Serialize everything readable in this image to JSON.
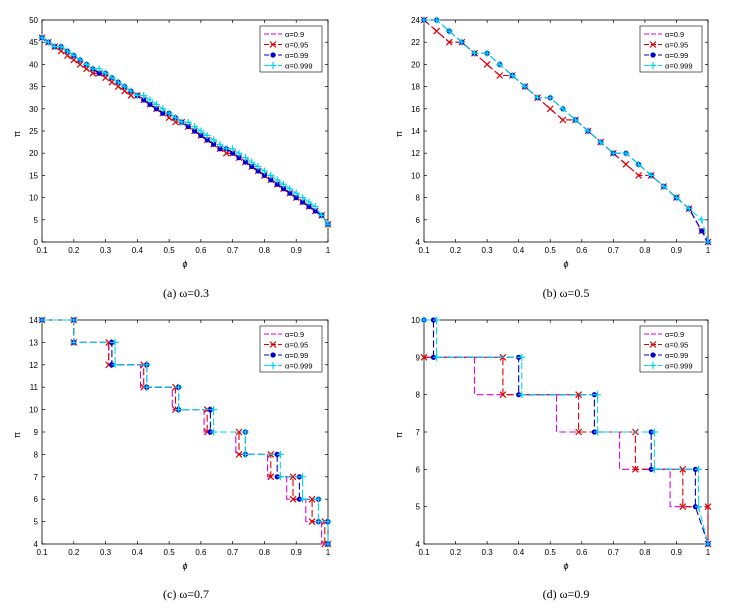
{
  "colors": {
    "series": [
      "#e000e0",
      "#e00000",
      "#0000d0",
      "#00d8f0"
    ],
    "axis": "#000000",
    "background": "#ffffff"
  },
  "chart_data": [
    {
      "type": "line",
      "caption": "(a) ω=0.3",
      "xlabel": "ϕ",
      "ylabel": "π",
      "xlim": [
        0.1,
        1
      ],
      "ylim": [
        0,
        50
      ],
      "xticks": [
        0.1,
        0.2,
        0.3,
        0.4,
        0.5,
        0.6,
        0.7,
        0.8,
        0.9,
        1
      ],
      "yticks": [
        0,
        5,
        10,
        15,
        20,
        25,
        30,
        35,
        40,
        45,
        50
      ],
      "legend_position": "top-right",
      "series": [
        {
          "name": "α=0.9",
          "x": [
            0.1,
            0.12,
            0.14,
            0.16,
            0.18,
            0.2,
            0.22,
            0.24,
            0.26,
            0.28,
            0.3,
            0.32,
            0.34,
            0.36,
            0.38,
            0.4,
            0.42,
            0.44,
            0.46,
            0.48,
            0.5,
            0.52,
            0.54,
            0.56,
            0.58,
            0.6,
            0.62,
            0.64,
            0.66,
            0.68,
            0.7,
            0.72,
            0.74,
            0.76,
            0.78,
            0.8,
            0.82,
            0.84,
            0.86,
            0.88,
            0.9,
            0.92,
            0.94,
            0.96,
            0.98,
            1.0
          ],
          "y": [
            46,
            45,
            44,
            43,
            42,
            41,
            40,
            39,
            38,
            38,
            37,
            36,
            35,
            34,
            33,
            33,
            32,
            31,
            30,
            29,
            28,
            27,
            27,
            26,
            25,
            24,
            23,
            22,
            21,
            20,
            20,
            19,
            18,
            17,
            16,
            15,
            14,
            13,
            12,
            11,
            10,
            9,
            8,
            7,
            6,
            4
          ]
        },
        {
          "name": "α=0.95",
          "x": [
            0.1,
            0.12,
            0.14,
            0.16,
            0.18,
            0.2,
            0.22,
            0.24,
            0.26,
            0.28,
            0.3,
            0.32,
            0.34,
            0.36,
            0.38,
            0.4,
            0.42,
            0.44,
            0.46,
            0.48,
            0.5,
            0.52,
            0.54,
            0.56,
            0.58,
            0.6,
            0.62,
            0.64,
            0.66,
            0.68,
            0.7,
            0.72,
            0.74,
            0.76,
            0.78,
            0.8,
            0.82,
            0.84,
            0.86,
            0.88,
            0.9,
            0.92,
            0.94,
            0.96,
            0.98,
            1.0
          ],
          "y": [
            46,
            45,
            44,
            43,
            42,
            41,
            40,
            39,
            38,
            38,
            37,
            36,
            35,
            34,
            33,
            33,
            32,
            31,
            30,
            29,
            28,
            27,
            27,
            26,
            25,
            24,
            23,
            22,
            21,
            20,
            20,
            19,
            18,
            17,
            16,
            15,
            14,
            13,
            12,
            11,
            10,
            9,
            8,
            7,
            6,
            4
          ]
        },
        {
          "name": "α=0.99",
          "x": [
            0.1,
            0.12,
            0.14,
            0.16,
            0.18,
            0.2,
            0.22,
            0.24,
            0.26,
            0.28,
            0.3,
            0.32,
            0.34,
            0.36,
            0.38,
            0.4,
            0.42,
            0.44,
            0.46,
            0.48,
            0.5,
            0.52,
            0.54,
            0.56,
            0.58,
            0.6,
            0.62,
            0.64,
            0.66,
            0.68,
            0.7,
            0.72,
            0.74,
            0.76,
            0.78,
            0.8,
            0.82,
            0.84,
            0.86,
            0.88,
            0.9,
            0.92,
            0.94,
            0.96,
            0.98,
            1.0
          ],
          "y": [
            46,
            45,
            44,
            44,
            43,
            42,
            41,
            40,
            39,
            38,
            38,
            37,
            36,
            35,
            34,
            33,
            32,
            31,
            30,
            29,
            29,
            28,
            27,
            26,
            25,
            24,
            23,
            22,
            21,
            21,
            20,
            19,
            18,
            17,
            16,
            15,
            14,
            13,
            12,
            11,
            10,
            9,
            8,
            7,
            6,
            4
          ]
        },
        {
          "name": "α=0.999",
          "x": [
            0.1,
            0.12,
            0.14,
            0.16,
            0.18,
            0.2,
            0.22,
            0.24,
            0.26,
            0.28,
            0.3,
            0.32,
            0.34,
            0.36,
            0.38,
            0.4,
            0.42,
            0.44,
            0.46,
            0.48,
            0.5,
            0.52,
            0.54,
            0.56,
            0.58,
            0.6,
            0.62,
            0.64,
            0.66,
            0.68,
            0.7,
            0.72,
            0.74,
            0.76,
            0.78,
            0.8,
            0.82,
            0.84,
            0.86,
            0.88,
            0.9,
            0.92,
            0.94,
            0.96,
            0.98,
            1.0
          ],
          "y": [
            46,
            45,
            44,
            44,
            43,
            42,
            41,
            40,
            39,
            39,
            38,
            37,
            36,
            35,
            34,
            33,
            33,
            32,
            31,
            30,
            29,
            28,
            27,
            27,
            26,
            25,
            24,
            23,
            22,
            21,
            21,
            20,
            19,
            18,
            17,
            16,
            15,
            14,
            13,
            12,
            11,
            10,
            9,
            8,
            6,
            4
          ]
        }
      ]
    },
    {
      "type": "line",
      "caption": "(b) ω=0.5",
      "xlabel": "ϕ",
      "ylabel": "π",
      "xlim": [
        0.1,
        1
      ],
      "ylim": [
        4,
        24
      ],
      "xticks": [
        0.1,
        0.2,
        0.3,
        0.4,
        0.5,
        0.6,
        0.7,
        0.8,
        0.9,
        1
      ],
      "yticks": [
        4,
        6,
        8,
        10,
        12,
        14,
        16,
        18,
        20,
        22,
        24
      ],
      "legend_position": "top-right",
      "series": [
        {
          "name": "α=0.9",
          "x": [
            0.1,
            0.14,
            0.18,
            0.22,
            0.26,
            0.3,
            0.34,
            0.38,
            0.42,
            0.46,
            0.5,
            0.54,
            0.58,
            0.62,
            0.66,
            0.7,
            0.74,
            0.78,
            0.82,
            0.86,
            0.9,
            0.94,
            0.98,
            1.0
          ],
          "y": [
            24,
            23,
            22,
            22,
            21,
            20,
            19,
            19,
            18,
            17,
            16,
            15,
            15,
            14,
            13,
            12,
            11,
            10,
            10,
            9,
            8,
            7,
            5,
            4
          ]
        },
        {
          "name": "α=0.95",
          "x": [
            0.1,
            0.14,
            0.18,
            0.22,
            0.26,
            0.3,
            0.34,
            0.38,
            0.42,
            0.46,
            0.5,
            0.54,
            0.58,
            0.62,
            0.66,
            0.7,
            0.74,
            0.78,
            0.82,
            0.86,
            0.9,
            0.94,
            0.98,
            1.0
          ],
          "y": [
            24,
            23,
            22,
            22,
            21,
            20,
            19,
            19,
            18,
            17,
            16,
            15,
            15,
            14,
            13,
            12,
            11,
            10,
            10,
            9,
            8,
            7,
            5,
            4
          ]
        },
        {
          "name": "α=0.99",
          "x": [
            0.1,
            0.14,
            0.18,
            0.22,
            0.26,
            0.3,
            0.34,
            0.38,
            0.42,
            0.46,
            0.5,
            0.54,
            0.58,
            0.62,
            0.66,
            0.7,
            0.74,
            0.78,
            0.82,
            0.86,
            0.9,
            0.94,
            0.98,
            1.0
          ],
          "y": [
            24,
            24,
            23,
            22,
            21,
            21,
            20,
            19,
            18,
            17,
            17,
            16,
            15,
            14,
            13,
            12,
            12,
            11,
            10,
            9,
            8,
            7,
            5,
            4
          ]
        },
        {
          "name": "α=0.999",
          "x": [
            0.1,
            0.14,
            0.18,
            0.22,
            0.26,
            0.3,
            0.34,
            0.38,
            0.42,
            0.46,
            0.5,
            0.54,
            0.58,
            0.62,
            0.66,
            0.7,
            0.74,
            0.78,
            0.82,
            0.86,
            0.9,
            0.94,
            0.98,
            1.0
          ],
          "y": [
            24,
            24,
            23,
            22,
            21,
            21,
            20,
            19,
            18,
            17,
            17,
            16,
            15,
            14,
            13,
            12,
            12,
            11,
            10,
            9,
            8,
            7,
            6,
            4
          ]
        }
      ]
    },
    {
      "type": "line",
      "caption": "(c) ω=0.7",
      "xlabel": "ϕ",
      "ylabel": "π",
      "xlim": [
        0.1,
        1
      ],
      "ylim": [
        4,
        14
      ],
      "xticks": [
        0.1,
        0.2,
        0.3,
        0.4,
        0.5,
        0.6,
        0.7,
        0.8,
        0.9,
        1
      ],
      "yticks": [
        4,
        5,
        6,
        7,
        8,
        9,
        10,
        11,
        12,
        13,
        14
      ],
      "legend_position": "top-right",
      "series": [
        {
          "name": "α=0.9",
          "x": [
            0.1,
            0.2,
            0.2,
            0.31,
            0.31,
            0.41,
            0.41,
            0.51,
            0.51,
            0.61,
            0.61,
            0.71,
            0.71,
            0.81,
            0.81,
            0.87,
            0.87,
            0.93,
            0.93,
            0.98,
            0.98,
            1.0
          ],
          "y": [
            14,
            14,
            13,
            13,
            12,
            12,
            11,
            11,
            10,
            10,
            9,
            9,
            8,
            8,
            7,
            7,
            6,
            6,
            5,
            5,
            4,
            4
          ]
        },
        {
          "name": "α=0.95",
          "x": [
            0.1,
            0.2,
            0.2,
            0.31,
            0.31,
            0.42,
            0.42,
            0.52,
            0.52,
            0.62,
            0.62,
            0.72,
            0.72,
            0.82,
            0.82,
            0.89,
            0.89,
            0.95,
            0.95,
            0.99,
            0.99,
            1.0
          ],
          "y": [
            14,
            14,
            13,
            13,
            12,
            12,
            11,
            11,
            10,
            10,
            9,
            9,
            8,
            8,
            7,
            7,
            6,
            6,
            5,
            5,
            4,
            4
          ]
        },
        {
          "name": "α=0.99",
          "x": [
            0.1,
            0.2,
            0.2,
            0.32,
            0.32,
            0.43,
            0.43,
            0.53,
            0.53,
            0.63,
            0.63,
            0.74,
            0.74,
            0.84,
            0.84,
            0.91,
            0.91,
            0.97,
            0.97,
            1.0,
            1.0
          ],
          "y": [
            14,
            14,
            13,
            13,
            12,
            12,
            11,
            11,
            10,
            10,
            9,
            9,
            8,
            8,
            7,
            7,
            6,
            6,
            5,
            5,
            4
          ]
        },
        {
          "name": "α=0.999",
          "x": [
            0.1,
            0.2,
            0.2,
            0.33,
            0.33,
            0.43,
            0.43,
            0.53,
            0.53,
            0.64,
            0.64,
            0.74,
            0.74,
            0.85,
            0.85,
            0.92,
            0.92,
            0.97,
            0.97,
            1.0,
            1.0
          ],
          "y": [
            14,
            14,
            13,
            13,
            12,
            12,
            11,
            11,
            10,
            10,
            9,
            9,
            8,
            8,
            7,
            7,
            6,
            6,
            5,
            5,
            4
          ]
        }
      ]
    },
    {
      "type": "line",
      "caption": "(d) ω=0.9",
      "xlabel": "ϕ",
      "ylabel": "π",
      "xlim": [
        0.1,
        1
      ],
      "ylim": [
        4,
        10
      ],
      "xticks": [
        0.1,
        0.2,
        0.3,
        0.4,
        0.5,
        0.6,
        0.7,
        0.8,
        0.9,
        1
      ],
      "yticks": [
        4,
        5,
        6,
        7,
        8,
        9,
        10
      ],
      "legend_position": "top-right",
      "series": [
        {
          "name": "α=0.9",
          "x": [
            0.1,
            0.26,
            0.26,
            0.52,
            0.52,
            0.72,
            0.72,
            0.88,
            0.88,
            1.0,
            1.0
          ],
          "y": [
            9,
            9,
            8,
            8,
            7,
            7,
            6,
            6,
            5,
            5,
            4
          ]
        },
        {
          "name": "α=0.95",
          "x": [
            0.1,
            0.35,
            0.35,
            0.59,
            0.59,
            0.77,
            0.77,
            0.92,
            0.92,
            1.0,
            1.0
          ],
          "y": [
            9,
            9,
            8,
            8,
            7,
            7,
            6,
            6,
            5,
            5,
            4
          ]
        },
        {
          "name": "α=0.99",
          "x": [
            0.1,
            0.13,
            0.13,
            0.4,
            0.4,
            0.64,
            0.64,
            0.82,
            0.82,
            0.96,
            0.96,
            1.0
          ],
          "y": [
            10,
            10,
            9,
            9,
            8,
            8,
            7,
            7,
            6,
            6,
            5,
            4
          ]
        },
        {
          "name": "α=0.999",
          "x": [
            0.1,
            0.14,
            0.14,
            0.41,
            0.41,
            0.65,
            0.65,
            0.83,
            0.83,
            0.97,
            0.97,
            1.0
          ],
          "y": [
            10,
            10,
            9,
            9,
            8,
            8,
            7,
            7,
            6,
            6,
            5,
            4
          ]
        }
      ]
    }
  ]
}
